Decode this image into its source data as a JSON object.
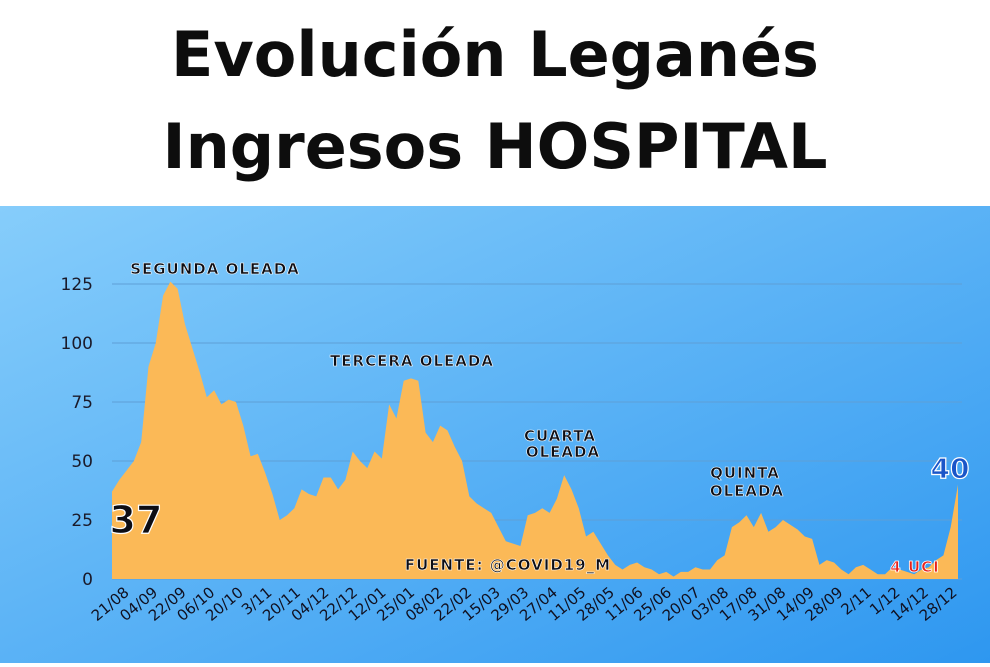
{
  "title_lines": [
    "Evolución Leganés",
    "Ingresos HOSPITAL"
  ],
  "colors": {
    "area": "#fbb957",
    "bg_top": "#86cdfb",
    "bg_bottom": "#2e97f0",
    "label_dark": "#0d0d14",
    "label_blue": "#1a55c8",
    "label_red": "#e8201b",
    "grid": "#5e9fd6"
  },
  "chart_data": {
    "type": "area",
    "title": "Evolución Leganés Ingresos HOSPITAL",
    "xlabel": "",
    "ylabel": "",
    "ylim": [
      0,
      130
    ],
    "yticks": [
      0,
      25,
      50,
      75,
      100,
      125
    ],
    "grid": true,
    "xtick_labels": [
      "21/08",
      "04/09",
      "22/09",
      "06/10",
      "20/10",
      "3/11",
      "20/11",
      "04/12",
      "22/12",
      "12/01",
      "25/01",
      "08/02",
      "22/02",
      "15/03",
      "29/03",
      "27/04",
      "11/05",
      "28/05",
      "11/06",
      "25/06",
      "20/07",
      "03/08",
      "17/08",
      "31/08",
      "14/09",
      "28/09",
      "2/11",
      "1/12",
      "14/12",
      "28/12"
    ],
    "series": [
      {
        "values": [
          37,
          42,
          46,
          50,
          58,
          90,
          100,
          120,
          126,
          123,
          108,
          98,
          88,
          77,
          80,
          74,
          76,
          75,
          65,
          52,
          53,
          45,
          36,
          25,
          27,
          30,
          38,
          36,
          35,
          43,
          43,
          38,
          42,
          54,
          50,
          47,
          54,
          51,
          74,
          68,
          84,
          85,
          84,
          62,
          58,
          65,
          63,
          56,
          50,
          35,
          32,
          30,
          28,
          22,
          16,
          15,
          14,
          27,
          28,
          30,
          28,
          34,
          44,
          38,
          30,
          18,
          20,
          15,
          10,
          6,
          4,
          6,
          7,
          5,
          4,
          2,
          3,
          1,
          3,
          3,
          5,
          4,
          4,
          8,
          10,
          22,
          24,
          27,
          22,
          28,
          20,
          22,
          25,
          23,
          21,
          18,
          17,
          6,
          8,
          7,
          4,
          2,
          5,
          6,
          4,
          2,
          2,
          5,
          4,
          3,
          2,
          4,
          5,
          8,
          10,
          22,
          40
        ]
      }
    ],
    "annotations": [
      {
        "text": "SEGUNDA OLEADA"
      },
      {
        "text": "TERCERA OLEADA"
      },
      {
        "text": "CUARTA"
      },
      {
        "text": "OLEADA"
      },
      {
        "text": "QUINTA"
      },
      {
        "text": "OLEADA"
      },
      {
        "text": "FUENTE: @COVID19_M"
      },
      {
        "text": "4 UCI"
      },
      {
        "text": "37"
      },
      {
        "text": "40"
      }
    ]
  }
}
